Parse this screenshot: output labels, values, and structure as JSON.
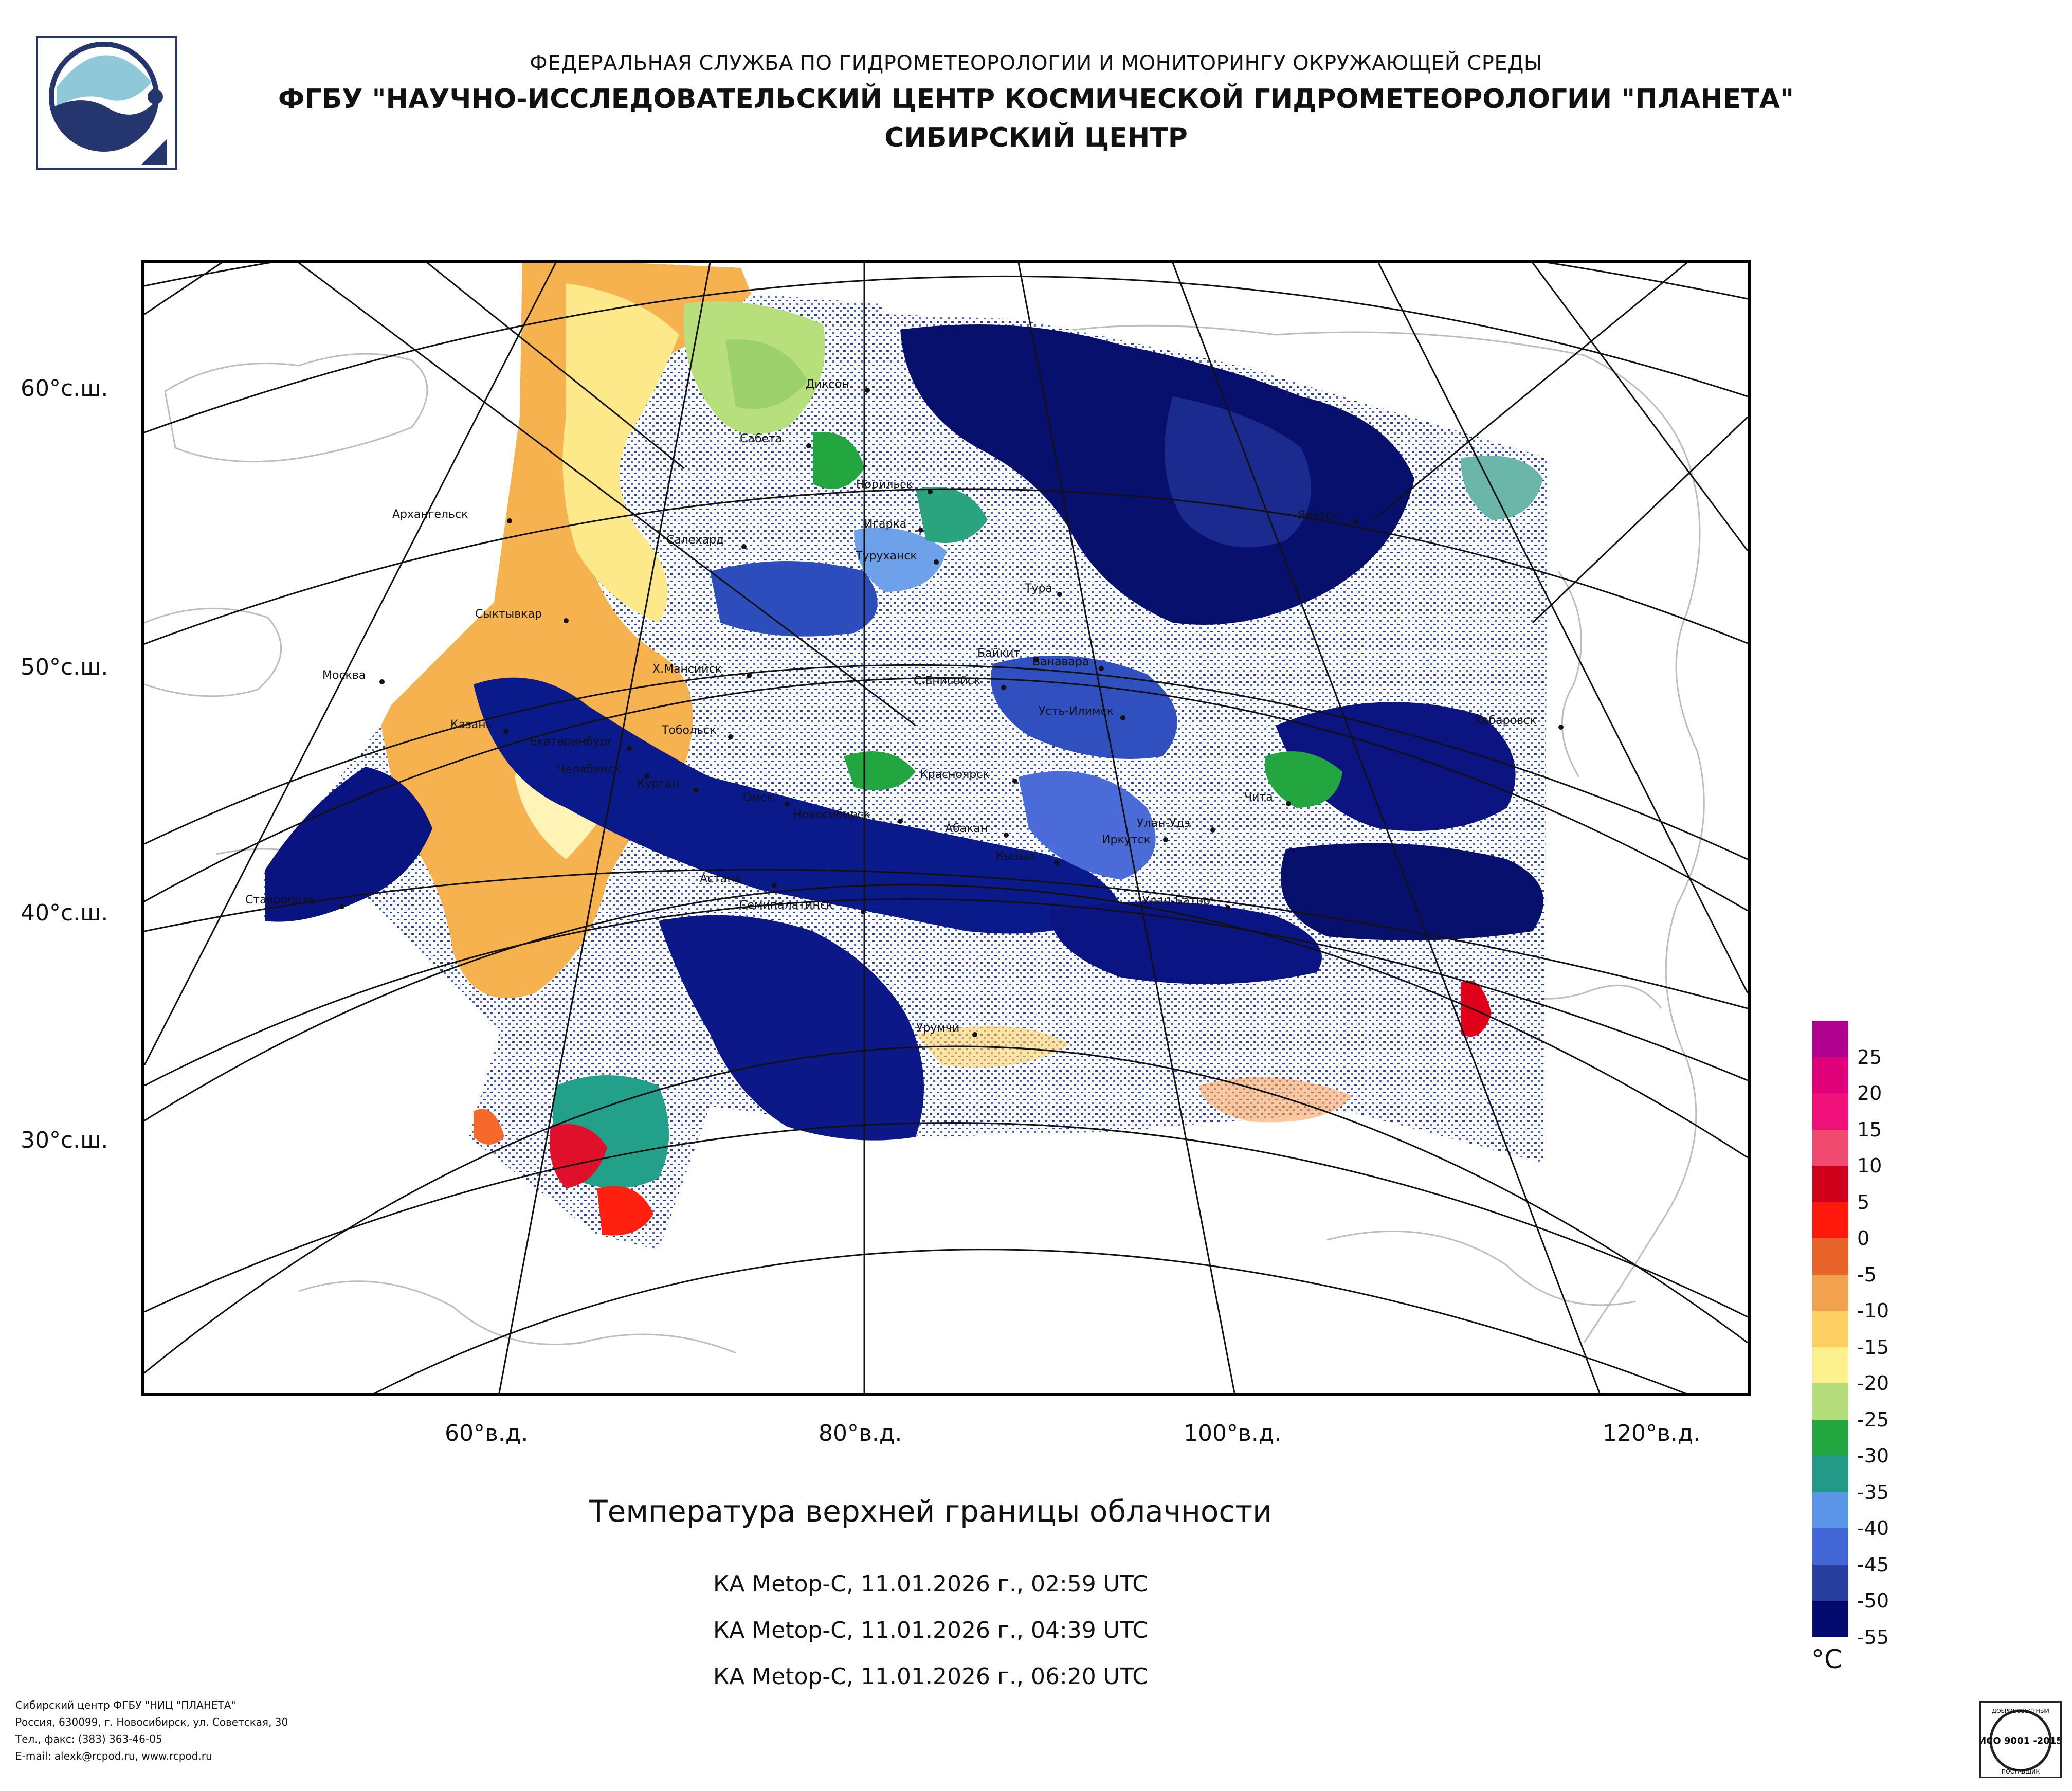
{
  "header": {
    "line1": "ФЕДЕРАЛЬНАЯ СЛУЖБА ПО ГИДРОМЕТЕОРОЛОГИИ И МОНИТОРИНГУ ОКРУЖАЮЩЕЙ СРЕДЫ",
    "line2": "ФГБУ \"НАУЧНО-ИССЛЕДОВАТЕЛЬСКИЙ ЦЕНТР КОСМИЧЕСКОЙ ГИДРОМЕТЕОРОЛОГИИ \"ПЛАНЕТА\"",
    "line3": "СИБИРСКИЙ ЦЕНТР"
  },
  "logo": {
    "icon": "planeta-logo-icon"
  },
  "map": {
    "latitude_labels": [
      "60°с.ш.",
      "50°с.ш.",
      "40°с.ш.",
      "30°с.ш."
    ],
    "longitude_labels": [
      "60°в.д.",
      "80°в.д.",
      "100°в.д.",
      "120°в.д."
    ],
    "cities": [
      "Диксон",
      "Сабета",
      "Норильск",
      "Игарка",
      "Туруханск",
      "Архангельск",
      "Салехард",
      "Тура",
      "Якутск",
      "Сыктывкар",
      "Байкит",
      "Ванавара",
      "Москва",
      "Х.Мансийск",
      "С.Енисейск",
      "Усть-Илимск",
      "Хабаровск",
      "Казань",
      "Екатеринбург",
      "Тобольск",
      "Челябинск",
      "Курган",
      "Омск",
      "Новосибирск",
      "Красноярск",
      "Чита",
      "Абакан",
      "Улан-Удэ",
      "Иркутск",
      "Кызыл",
      "Астана",
      "Ставрополь",
      "Семипалатинск",
      "Улан-Батор",
      "Урумчи"
    ]
  },
  "legend": {
    "unit": "°C",
    "colors": [
      "#b0008f",
      "#e0007a",
      "#f0127a",
      "#f04a70",
      "#d0001c",
      "#ff1a0d",
      "#e8632a",
      "#f2a14e",
      "#fdd063",
      "#fdf08e",
      "#b5dd7c",
      "#23a63f",
      "#229a87",
      "#5b95e8",
      "#4266d6",
      "#283ea0",
      "#050a6e"
    ],
    "labels": [
      "25",
      "20",
      "15",
      "10",
      "5",
      "0",
      "-5",
      "-10",
      "-15",
      "-20",
      "-25",
      "-30",
      "-35",
      "-40",
      "-45",
      "-50",
      "-55"
    ]
  },
  "title": "Температура верхней границы облачности",
  "passes": [
    "КА Metop-C, 11.01.2026 г., 02:59 UTC",
    "КА Metop-C, 11.01.2026 г., 04:39 UTC",
    "КА Metop-C, 11.01.2026 г., 06:20 UTC"
  ],
  "footer": {
    "line1": "Сибирский центр ФГБУ \"НИЦ \"ПЛАНЕТА\"",
    "line2": "Россия, 630099, г. Новосибирск, ул. Советская, 30",
    "line3": "Тел., факс: (383) 363-46-05",
    "line4": "E-mail: alexk@rcpod.ru, www.rcpod.ru"
  },
  "certificate": {
    "top": "ДОБРОСОВЕСТНЫЙ",
    "middle": "ИСО 9001 -2015",
    "bottom": "ПОСТАВЩИК"
  }
}
